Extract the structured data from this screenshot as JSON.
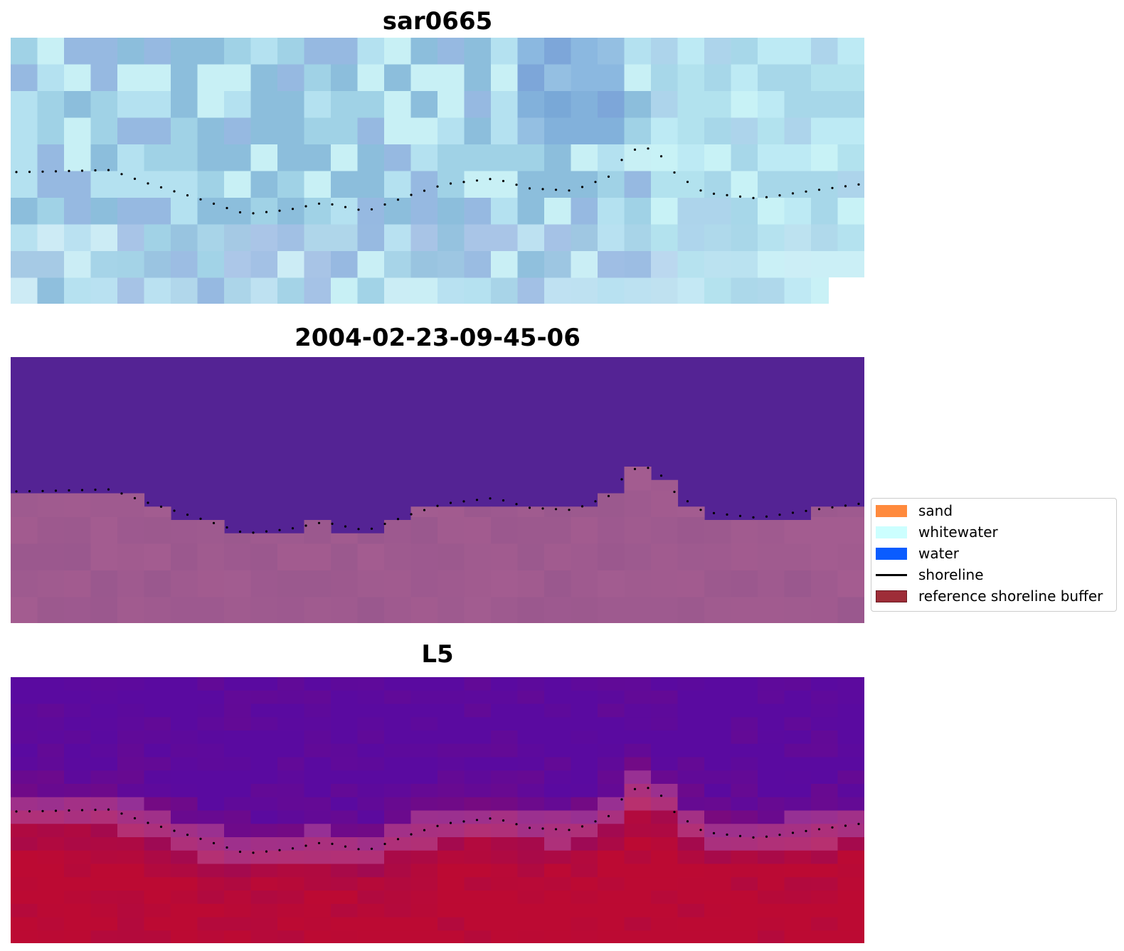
{
  "panels": [
    {
      "title": "sar0665",
      "style": "rgb"
    },
    {
      "title": "2004-02-23-09-45-06",
      "style": "classified"
    },
    {
      "title": "L5",
      "style": "index"
    }
  ],
  "legend": {
    "items": [
      {
        "label": "sand",
        "type": "patch",
        "color": "#ff8a3d"
      },
      {
        "label": "whitewater",
        "type": "patch",
        "color": "#ccffff"
      },
      {
        "label": "water",
        "type": "patch",
        "color": "#0a5cff"
      },
      {
        "label": "shoreline",
        "type": "line",
        "color": "#000000"
      },
      {
        "label": "reference shoreline buffer",
        "type": "patch",
        "color": "#9e2d38"
      }
    ]
  },
  "colors": {
    "classified_water": "#542394",
    "classified_land": "#9a588e",
    "index_low": "#5a0aa0",
    "index_high": "#bc0a33"
  }
}
